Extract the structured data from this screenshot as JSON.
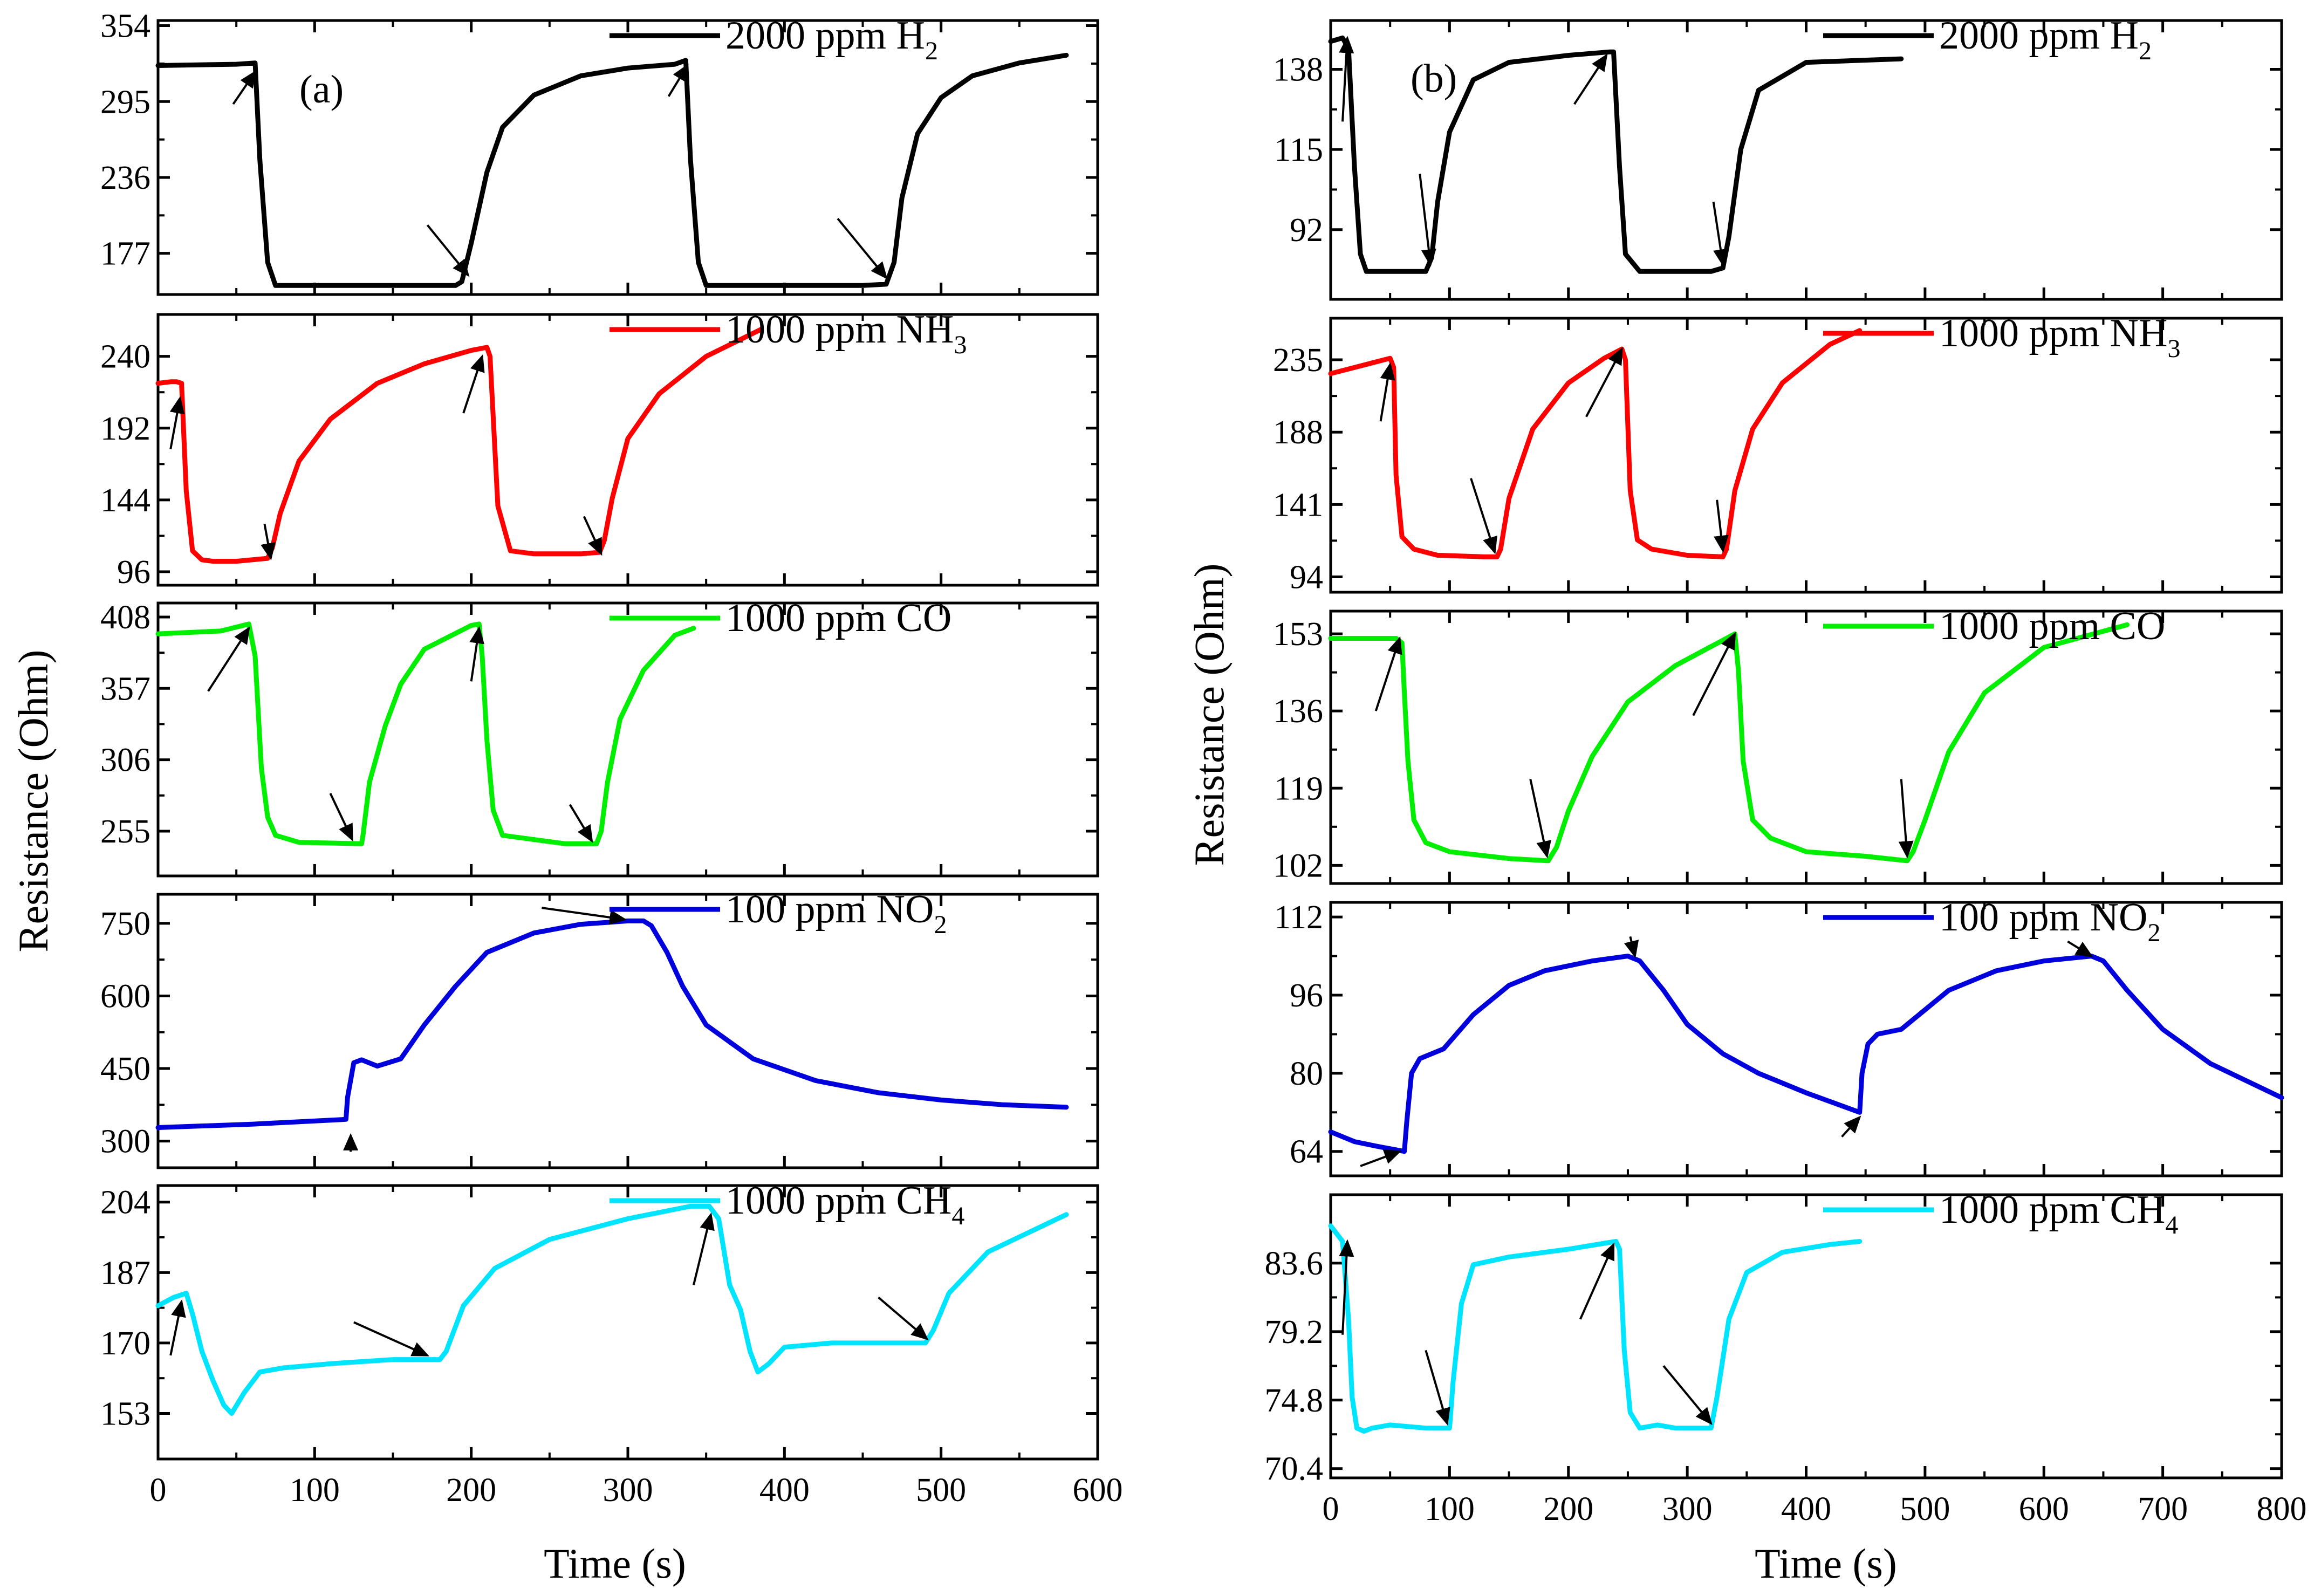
{
  "figure": {
    "panel_tags": [
      "(a)",
      "(b)"
    ],
    "xlabel": "Time (s)",
    "ylabel": "Resistance (Ohm)"
  },
  "chart_data": [
    {
      "type": "line",
      "panel": "(a)",
      "row": 0,
      "legend": "2000 ppm H",
      "legend_sub": "2",
      "color": "#000000",
      "xlim": [
        0,
        600
      ],
      "ylim": [
        145,
        358
      ],
      "xticks": [
        0,
        100,
        200,
        300,
        400,
        500,
        600
      ],
      "yticks": [
        177,
        236,
        295,
        354
      ],
      "x": [
        0,
        50,
        62,
        65,
        70,
        75,
        150,
        190,
        194,
        200,
        210,
        220,
        240,
        270,
        300,
        330,
        337,
        340,
        345,
        350,
        360,
        450,
        465,
        470,
        475,
        485,
        500,
        520,
        550,
        580
      ],
      "y": [
        323,
        324,
        325,
        250,
        170,
        152,
        152,
        152,
        155,
        185,
        240,
        275,
        300,
        315,
        321,
        324,
        327,
        250,
        170,
        152,
        152,
        152,
        153,
        170,
        220,
        270,
        298,
        315,
        325,
        331
      ],
      "arrows": [
        [
          48,
          293,
          62,
          318
        ],
        [
          172,
          199,
          198,
          160
        ],
        [
          326,
          299,
          338,
          323
        ],
        [
          434,
          204,
          465,
          158
        ]
      ]
    },
    {
      "type": "line",
      "panel": "(a)",
      "row": 1,
      "legend": "1000 ppm NH",
      "legend_sub": "3",
      "color": "#ff0000",
      "xlim": [
        0,
        600
      ],
      "ylim": [
        87,
        268
      ],
      "xticks": [
        0,
        100,
        200,
        300,
        400,
        500,
        600
      ],
      "yticks": [
        96,
        144,
        192,
        240
      ],
      "x": [
        0,
        8,
        12,
        15,
        18,
        22,
        28,
        35,
        50,
        70,
        73,
        78,
        90,
        110,
        140,
        170,
        200,
        210,
        212,
        217,
        225,
        240,
        270,
        282,
        285,
        290,
        300,
        320,
        350,
        385
      ],
      "y": [
        222,
        223,
        223,
        222,
        150,
        110,
        104,
        103,
        103,
        105,
        112,
        135,
        170,
        198,
        222,
        235,
        244,
        246,
        240,
        140,
        110,
        108,
        108,
        109,
        117,
        145,
        185,
        215,
        240,
        258
      ],
      "arrows": [
        [
          8,
          178,
          14,
          212
        ],
        [
          68,
          128,
          72,
          105
        ],
        [
          195,
          202,
          207,
          240
        ],
        [
          272,
          133,
          283,
          108
        ]
      ]
    },
    {
      "type": "line",
      "panel": "(a)",
      "row": 2,
      "legend": "1000 ppm CO",
      "legend_sub": "",
      "color": "#00ee00",
      "xlim": [
        0,
        600
      ],
      "ylim": [
        223,
        418
      ],
      "xticks": [
        0,
        100,
        200,
        300,
        400,
        500,
        600
      ],
      "yticks": [
        255,
        306,
        357,
        408
      ],
      "x": [
        0,
        40,
        58,
        62,
        66,
        70,
        75,
        90,
        130,
        131,
        135,
        145,
        155,
        170,
        200,
        205,
        207,
        210,
        214,
        220,
        260,
        280,
        283,
        287,
        295,
        310,
        330,
        342
      ],
      "y": [
        396,
        398,
        403,
        380,
        300,
        265,
        252,
        247,
        246,
        253,
        290,
        330,
        360,
        385,
        402,
        403,
        380,
        320,
        270,
        252,
        246,
        246,
        255,
        290,
        335,
        370,
        395,
        400
      ],
      "arrows": [
        [
          32,
          355,
          58,
          400
        ],
        [
          110,
          282,
          124,
          249
        ],
        [
          200,
          362,
          205,
          400
        ],
        [
          263,
          274,
          277,
          248
        ]
      ]
    },
    {
      "type": "line",
      "panel": "(a)",
      "row": 3,
      "legend": "100 ppm NO",
      "legend_sub": "2",
      "color": "#0000dd",
      "xlim": [
        0,
        600
      ],
      "ylim": [
        245,
        810
      ],
      "xticks": [
        0,
        100,
        200,
        300,
        400,
        500,
        600
      ],
      "yticks": [
        300,
        450,
        600,
        750
      ],
      "x": [
        0,
        60,
        120,
        121,
        125,
        130,
        140,
        155,
        170,
        190,
        210,
        240,
        270,
        300,
        310,
        315,
        325,
        335,
        350,
        380,
        420,
        460,
        500,
        540,
        580
      ],
      "y": [
        328,
        335,
        345,
        390,
        462,
        468,
        455,
        470,
        540,
        620,
        690,
        730,
        748,
        755,
        755,
        745,
        690,
        620,
        540,
        470,
        425,
        400,
        385,
        375,
        370
      ],
      "arrows": [
        [
          123,
          278,
          123,
          312
        ],
        [
          245,
          782,
          298,
          758
        ]
      ]
    },
    {
      "type": "line",
      "panel": "(a)",
      "row": 4,
      "legend": "1000 ppm CH",
      "legend_sub": "4",
      "color": "#00e5ff",
      "xlim": [
        0,
        600
      ],
      "ylim": [
        142,
        208
      ],
      "xticks": [
        0,
        100,
        200,
        300,
        400,
        500,
        600
      ],
      "yticks": [
        153,
        170,
        187,
        204
      ],
      "x": [
        0,
        10,
        18,
        22,
        28,
        35,
        42,
        47,
        55,
        65,
        80,
        110,
        150,
        180,
        184,
        195,
        215,
        250,
        300,
        340,
        352,
        358,
        365,
        372,
        378,
        383,
        390,
        400,
        430,
        490,
        495,
        505,
        530,
        580
      ],
      "y": [
        179,
        181,
        182,
        177,
        168,
        161,
        155,
        153,
        158,
        163,
        164,
        165,
        166,
        166,
        168,
        179,
        188,
        195,
        200,
        203,
        203,
        200,
        184,
        178,
        168,
        163,
        165,
        169,
        170,
        170,
        173,
        182,
        192,
        201
      ],
      "arrows": [
        [
          8,
          167,
          15,
          180
        ],
        [
          125,
          175,
          172,
          167
        ],
        [
          342,
          184,
          353,
          201
        ],
        [
          460,
          181,
          491,
          171
        ]
      ]
    },
    {
      "type": "line",
      "panel": "(b)",
      "row": 0,
      "legend": "2000 ppm H",
      "legend_sub": "2",
      "color": "#000000",
      "xlim": [
        0,
        800
      ],
      "ylim": [
        72,
        152
      ],
      "xticks": [
        0,
        100,
        200,
        300,
        400,
        500,
        600,
        700,
        800
      ],
      "yticks": [
        92,
        115,
        138
      ],
      "x": [
        0,
        10,
        15,
        20,
        25,
        30,
        50,
        80,
        85,
        90,
        100,
        120,
        150,
        200,
        235,
        238,
        243,
        248,
        260,
        320,
        330,
        335,
        345,
        360,
        400,
        480
      ],
      "y": [
        146,
        147,
        144,
        110,
        85,
        80,
        80,
        80,
        84,
        100,
        120,
        135,
        140,
        142,
        143,
        143,
        110,
        85,
        80,
        80,
        81,
        90,
        115,
        132,
        140,
        141
      ],
      "arrows": [
        [
          10,
          123,
          14,
          147
        ],
        [
          75,
          108,
          84,
          82
        ],
        [
          205,
          128,
          232,
          142
        ],
        [
          322,
          100,
          330,
          82
        ]
      ]
    },
    {
      "type": "line",
      "panel": "(b)",
      "row": 1,
      "legend": "1000 ppm NH",
      "legend_sub": "3",
      "color": "#ff0000",
      "xlim": [
        0,
        800
      ],
      "ylim": [
        84,
        262
      ],
      "xticks": [
        0,
        100,
        200,
        300,
        400,
        500,
        600,
        700,
        800
      ],
      "yticks": [
        94,
        141,
        188,
        235
      ],
      "x": [
        0,
        30,
        50,
        53,
        55,
        60,
        70,
        90,
        130,
        140,
        143,
        150,
        170,
        200,
        230,
        245,
        248,
        252,
        258,
        270,
        300,
        330,
        333,
        340,
        355,
        380,
        420,
        445
      ],
      "y": [
        226,
        232,
        236,
        230,
        160,
        120,
        112,
        108,
        107,
        107,
        112,
        145,
        190,
        220,
        236,
        242,
        235,
        150,
        118,
        112,
        108,
        107,
        112,
        150,
        190,
        220,
        245,
        254
      ],
      "arrows": [
        [
          42,
          195,
          50,
          232
        ],
        [
          118,
          158,
          138,
          110
        ],
        [
          215,
          198,
          245,
          242
        ],
        [
          325,
          144,
          330,
          111
        ]
      ]
    },
    {
      "type": "line",
      "panel": "(b)",
      "row": 2,
      "legend": "1000 ppm CO",
      "legend_sub": "",
      "color": "#00ee00",
      "xlim": [
        0,
        800
      ],
      "ylim": [
        98,
        158
      ],
      "xticks": [
        0,
        100,
        200,
        300,
        400,
        500,
        600,
        700,
        800
      ],
      "yticks": [
        102,
        119,
        136,
        153
      ],
      "x": [
        0,
        55,
        60,
        62,
        65,
        70,
        80,
        100,
        150,
        183,
        190,
        200,
        220,
        250,
        290,
        340,
        343,
        347,
        355,
        370,
        400,
        450,
        485,
        490,
        500,
        520,
        550,
        600,
        670
      ],
      "y": [
        152,
        152,
        151,
        140,
        125,
        112,
        107,
        105,
        103.5,
        103,
        106,
        114,
        126,
        138,
        146,
        153,
        145,
        125,
        112,
        108,
        105,
        104,
        103,
        105,
        112,
        127,
        140,
        150,
        155
      ],
      "arrows": [
        [
          38,
          136,
          58,
          152
        ],
        [
          168,
          121,
          182,
          104
        ],
        [
          305,
          135,
          340,
          153
        ],
        [
          480,
          121,
          485,
          104
        ]
      ]
    },
    {
      "type": "line",
      "panel": "(b)",
      "row": 3,
      "legend": "100 ppm NO",
      "legend_sub": "2",
      "color": "#0000dd",
      "xlim": [
        0,
        800
      ],
      "ylim": [
        59,
        115
      ],
      "xticks": [
        0,
        100,
        200,
        300,
        400,
        500,
        600,
        700,
        800
      ],
      "yticks": [
        64,
        80,
        96,
        112
      ],
      "x": [
        0,
        20,
        40,
        62,
        64,
        68,
        75,
        95,
        120,
        150,
        180,
        220,
        250,
        260,
        280,
        300,
        330,
        360,
        400,
        445,
        447,
        452,
        460,
        480,
        520,
        560,
        600,
        640,
        650,
        670,
        700,
        740,
        800
      ],
      "y": [
        68,
        66,
        65,
        64,
        70,
        80,
        83,
        85,
        92,
        98,
        101,
        103,
        104,
        103,
        97,
        90,
        84,
        80,
        76,
        72,
        80,
        86,
        88,
        89,
        97,
        101,
        103,
        104,
        103,
        97,
        89,
        82,
        75
      ],
      "arrows": [
        [
          25,
          61,
          58,
          64
        ],
        [
          252,
          108,
          256,
          104
        ],
        [
          430,
          67,
          445,
          71
        ],
        [
          620,
          107,
          640,
          104
        ]
      ]
    },
    {
      "type": "line",
      "panel": "(b)",
      "row": 4,
      "legend": "1000 ppm CH",
      "legend_sub": "4",
      "color": "#00e5ff",
      "xlim": [
        0,
        800
      ],
      "ylim": [
        69.8,
        88
      ],
      "xticks": [
        0,
        100,
        200,
        300,
        400,
        500,
        600,
        700,
        800
      ],
      "yticks": [
        70.4,
        74.8,
        79.2,
        83.6
      ],
      "x": [
        0,
        10,
        15,
        18,
        22,
        28,
        35,
        50,
        80,
        100,
        103,
        110,
        120,
        150,
        200,
        240,
        243,
        247,
        252,
        260,
        275,
        290,
        320,
        325,
        335,
        350,
        380,
        420,
        445
      ],
      "y": [
        86,
        85,
        80,
        75,
        73,
        72.8,
        73,
        73.2,
        73,
        73,
        76,
        81,
        83.5,
        84,
        84.5,
        85,
        84.5,
        78,
        74,
        73,
        73.2,
        73,
        73,
        75,
        80,
        83,
        84.3,
        84.8,
        85
      ],
      "arrows": [
        [
          10,
          79,
          14,
          85
        ],
        [
          80,
          78,
          98,
          73.3
        ],
        [
          210,
          80,
          238,
          84.8
        ],
        [
          280,
          77,
          320,
          73.3
        ]
      ]
    }
  ]
}
